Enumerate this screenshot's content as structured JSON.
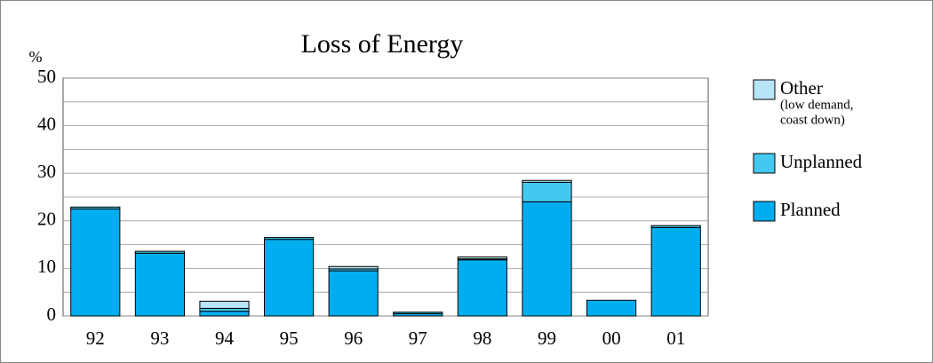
{
  "chart_data": {
    "type": "stacked_bar",
    "title": "Loss of Energy",
    "y_label": "%",
    "categories": [
      "92",
      "93",
      "94",
      "95",
      "96",
      "97",
      "98",
      "99",
      "00",
      "01"
    ],
    "series": [
      {
        "name": "Planned",
        "color": "#00aeef",
        "values": [
          22.5,
          13.2,
          1.0,
          16.1,
          9.5,
          0.5,
          11.8,
          24.0,
          3.3,
          18.6
        ]
      },
      {
        "name": "Unplanned",
        "color": "#45c8f0",
        "values": [
          0.4,
          0.4,
          0.6,
          0.4,
          0.4,
          0.3,
          0.2,
          4.1,
          0,
          0.4
        ]
      },
      {
        "name": "Other",
        "color": "#b8e4f7",
        "values": [
          0,
          0,
          1.5,
          0,
          0.5,
          0,
          0.4,
          0.4,
          0,
          0
        ]
      }
    ],
    "legend_note": [
      "(low demand,",
      "coast down)"
    ],
    "ylim": [
      0,
      50
    ],
    "yticks": [
      0,
      10,
      20,
      30,
      40,
      50
    ],
    "minor_yticks": [
      5,
      15,
      25,
      35,
      45
    ],
    "grid": true,
    "legend": "right"
  }
}
